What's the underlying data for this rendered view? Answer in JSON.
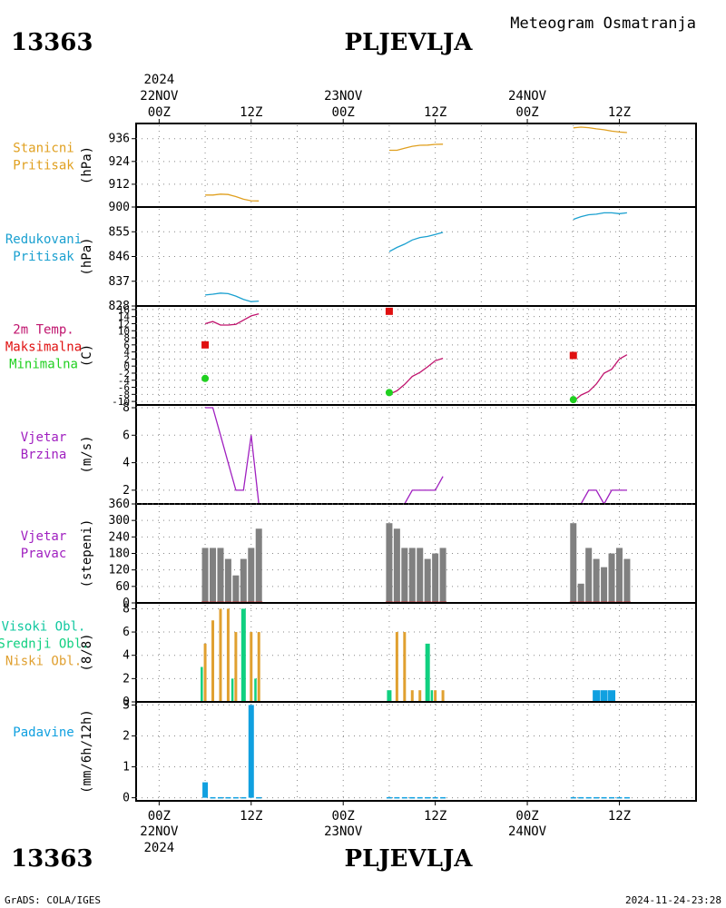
{
  "header": {
    "station_id": "13363",
    "station_name": "PLJEVLJA",
    "product": "Meteogram Osmatranja",
    "year": "2024"
  },
  "footer": {
    "station_id": "13363",
    "station_name": "PLJEVLJA",
    "credit": "GrADS: COLA/IGES",
    "timestamp": "2024-11-24-23:28"
  },
  "time_axis": {
    "top_labels": [
      {
        "hour": 0,
        "date": "22NOV",
        "time": "00Z",
        "year": "2024"
      },
      {
        "hour": 12,
        "time": "12Z"
      },
      {
        "hour": 24,
        "date": "23NOV",
        "time": "00Z"
      },
      {
        "hour": 36,
        "time": "12Z"
      },
      {
        "hour": 48,
        "date": "24NOV",
        "time": "00Z"
      },
      {
        "hour": 60,
        "time": "12Z"
      }
    ],
    "bottom_labels": [
      {
        "hour": 0,
        "time": "00Z",
        "date": "22NOV",
        "year": "2024"
      },
      {
        "hour": 12,
        "time": "12Z"
      },
      {
        "hour": 24,
        "time": "00Z",
        "date": "23NOV"
      },
      {
        "hour": 36,
        "time": "12Z"
      },
      {
        "hour": 48,
        "time": "00Z",
        "date": "24NOV"
      },
      {
        "hour": 60,
        "time": "12Z"
      }
    ],
    "range_hours": [
      -3,
      70
    ]
  },
  "colors": {
    "station_pressure": "#e0a020",
    "reduced_pressure": "#1aa0d0",
    "temp_line": "#c0146e",
    "temp_max": "#e01010",
    "temp_min": "#20d020",
    "wind_speed": "#a020c0",
    "wind_dir_bar": "#808080",
    "cloud_high": "#10c8a0",
    "cloud_mid": "#10d080",
    "cloud_low": "#e0a030",
    "precip": "#10a0e0",
    "grid": "#888888"
  },
  "chart_data": [
    {
      "id": "station_pressure",
      "type": "line",
      "labels": [
        "Stanicni",
        "Pritisak"
      ],
      "ylabel": "(hPa)",
      "ylim": [
        900,
        944
      ],
      "ticks": [
        900,
        912,
        924,
        936
      ],
      "tick_labels": [
        "900",
        "912",
        "924",
        "936"
      ],
      "series": [
        {
          "x": [
            6,
            7,
            8,
            9,
            10,
            11,
            12,
            13
          ],
          "y": [
            906.3,
            906.3,
            906.8,
            906.6,
            905.5,
            904.1,
            903.3,
            903.2
          ]
        },
        {
          "x": [
            30,
            31,
            32,
            33,
            34,
            35,
            36,
            37
          ],
          "y": [
            929.9,
            929.9,
            931.0,
            932.0,
            932.5,
            932.6,
            933.0,
            933.1
          ]
        },
        {
          "x": [
            54,
            55,
            56,
            57,
            58,
            59,
            60,
            61
          ],
          "y": [
            941.7,
            942.1,
            941.8,
            941.2,
            940.7,
            940.0,
            939.5,
            939.2
          ]
        }
      ]
    },
    {
      "id": "reduced_pressure",
      "type": "line",
      "labels": [
        "Redukovani",
        "Pritisak"
      ],
      "ylabel": "(hPa)",
      "ylim": [
        828,
        864
      ],
      "ticks": [
        828,
        837,
        846,
        855
      ],
      "tick_labels": [
        "828",
        "837",
        "846",
        "855"
      ],
      "series": [
        {
          "x": [
            6,
            7,
            8,
            9,
            10,
            11,
            12,
            13
          ],
          "y": [
            832.0,
            832.3,
            832.7,
            832.5,
            831.6,
            830.4,
            829.6,
            829.8
          ]
        },
        {
          "x": [
            30,
            31,
            32,
            33,
            34,
            35,
            36,
            37
          ],
          "y": [
            847.8,
            849.3,
            850.5,
            852.0,
            852.9,
            853.3,
            854.0,
            854.8
          ]
        },
        {
          "x": [
            54,
            55,
            56,
            57,
            58,
            59,
            60,
            61
          ],
          "y": [
            859.5,
            860.5,
            861.2,
            861.4,
            861.9,
            861.9,
            861.6,
            861.9
          ]
        }
      ]
    },
    {
      "id": "temperature",
      "type": "line",
      "labels": [
        "2m Temp.",
        "Maksimalna",
        "Minimalna"
      ],
      "ylabel": "(C)",
      "ylim": [
        -11,
        17
      ],
      "ticks": [
        -10,
        -8,
        -6,
        -4,
        -2,
        0,
        2,
        4,
        6,
        8,
        10,
        12,
        14,
        16
      ],
      "tick_labels": [
        "-10",
        "-8",
        "-6",
        "-4",
        "-2",
        "0",
        "2",
        "4",
        "6",
        "8",
        "10",
        "12",
        "14",
        "16"
      ],
      "series": [
        {
          "x": [
            6,
            7,
            8,
            9,
            10,
            11,
            12,
            13
          ],
          "y": [
            12.0,
            12.6,
            11.6,
            11.6,
            11.8,
            13.0,
            14.2,
            14.8
          ]
        },
        {
          "x": [
            30,
            31,
            32,
            33,
            34,
            35,
            36,
            37
          ],
          "y": [
            -8.0,
            -7.0,
            -5.2,
            -2.9,
            -1.8,
            -0.2,
            1.5,
            2.2
          ]
        },
        {
          "x": [
            54,
            55,
            56,
            57,
            58,
            59,
            60,
            61
          ],
          "y": [
            -10.0,
            -8.2,
            -7.2,
            -5.1,
            -2.0,
            -0.9,
            2.0,
            3.2
          ]
        }
      ],
      "max_points": [
        {
          "x": 6,
          "y": 6.0
        },
        {
          "x": 30,
          "y": 15.5
        },
        {
          "x": 54,
          "y": 3.0
        }
      ],
      "min_points": [
        {
          "x": 6,
          "y": -3.5
        },
        {
          "x": 30,
          "y": -7.5
        },
        {
          "x": 54,
          "y": -9.5
        }
      ]
    },
    {
      "id": "wind_speed",
      "type": "line",
      "labels": [
        "Vjetar",
        "Brzina"
      ],
      "ylabel": "(m/s)",
      "ylim": [
        1,
        8.2
      ],
      "ticks": [
        2,
        4,
        6,
        8
      ],
      "tick_labels": [
        "2",
        "4",
        "6",
        "8"
      ],
      "series": [
        {
          "x": [
            6,
            7,
            8,
            9,
            10,
            11,
            12,
            13
          ],
          "y": [
            8,
            8,
            6,
            4,
            2,
            2,
            6,
            1
          ]
        },
        {
          "x": [
            30,
            31,
            32,
            33,
            34,
            35,
            36,
            37
          ],
          "y": [
            1,
            1,
            1,
            2,
            2,
            2,
            2,
            3
          ]
        },
        {
          "x": [
            54,
            55,
            56,
            57,
            58,
            59,
            60,
            61
          ],
          "y": [
            1,
            1,
            2,
            2,
            1,
            2,
            2,
            2
          ]
        }
      ]
    },
    {
      "id": "wind_direction",
      "type": "bar",
      "labels": [
        "Vjetar",
        "Pravac"
      ],
      "ylabel": "(stepeni)",
      "ylim": [
        0,
        360
      ],
      "ticks": [
        0,
        60,
        120,
        180,
        240,
        300,
        360
      ],
      "tick_labels": [
        "0",
        "60",
        "120",
        "180",
        "240",
        "300",
        "360"
      ],
      "x": [
        6,
        7,
        8,
        9,
        10,
        11,
        12,
        13,
        30,
        31,
        32,
        33,
        34,
        35,
        36,
        37,
        54,
        55,
        56,
        57,
        58,
        59,
        60,
        61
      ],
      "values": [
        200,
        200,
        200,
        160,
        100,
        160,
        200,
        270,
        290,
        270,
        200,
        200,
        200,
        160,
        180,
        200,
        290,
        70,
        200,
        160,
        130,
        180,
        200,
        160
      ]
    },
    {
      "id": "clouds",
      "type": "bar",
      "labels": [
        "Visoki Obl.",
        "Srednji Obl.",
        "Niski Obl."
      ],
      "ylabel": "(8/8)",
      "ylim": [
        0,
        8.5
      ],
      "ticks": [
        0,
        2,
        4,
        6,
        8
      ],
      "tick_labels": [
        "0",
        "2",
        "4",
        "6",
        "8"
      ],
      "x": [
        6,
        7,
        8,
        9,
        10,
        11,
        12,
        13,
        30,
        31,
        32,
        33,
        34,
        35,
        36,
        37,
        54,
        55,
        56,
        57,
        58,
        59,
        60,
        61
      ],
      "series": [
        {
          "name": "Visoki Obl.",
          "values": [
            0,
            0,
            0,
            0,
            0,
            0,
            0,
            0,
            0,
            0,
            0,
            0,
            0,
            0,
            0,
            0,
            0,
            0,
            0,
            0,
            0,
            0,
            0,
            0
          ]
        },
        {
          "name": "Srednji Obl.",
          "values": [
            3,
            0,
            0,
            0,
            2,
            8,
            0,
            2,
            1,
            0,
            0,
            0,
            0,
            5,
            1,
            0,
            0,
            0,
            0,
            0,
            0,
            0,
            0,
            0
          ]
        },
        {
          "name": "Niski Obl.",
          "values": [
            5,
            7,
            8,
            8,
            6,
            0,
            6,
            6,
            0,
            6,
            6,
            1,
            1,
            0,
            1,
            1,
            0,
            0,
            0,
            0,
            0,
            0,
            0,
            0
          ]
        }
      ]
    },
    {
      "id": "precipitation",
      "type": "bar",
      "labels": [
        "Padavine"
      ],
      "ylabel": "(mm/6h/12h)",
      "ylim": [
        -0.1,
        3.1
      ],
      "ticks": [
        0,
        1,
        2,
        3
      ],
      "tick_labels": [
        "0",
        "1",
        "2",
        "3"
      ],
      "x": [
        6,
        7,
        8,
        9,
        10,
        11,
        12,
        13,
        30,
        31,
        32,
        33,
        34,
        35,
        36,
        37,
        54,
        55,
        56,
        57,
        58,
        59,
        60,
        61
      ],
      "values": [
        0.5,
        0,
        0,
        0,
        0,
        0,
        3.0,
        0,
        0,
        0,
        0,
        0,
        0,
        0,
        0,
        0,
        0,
        0,
        0,
        0,
        0,
        0,
        0,
        0
      ],
      "extra_bars": [
        {
          "panel": "clouds",
          "x": [
            57,
            58,
            59
          ],
          "values": [
            1,
            1,
            1
          ]
        }
      ]
    }
  ]
}
